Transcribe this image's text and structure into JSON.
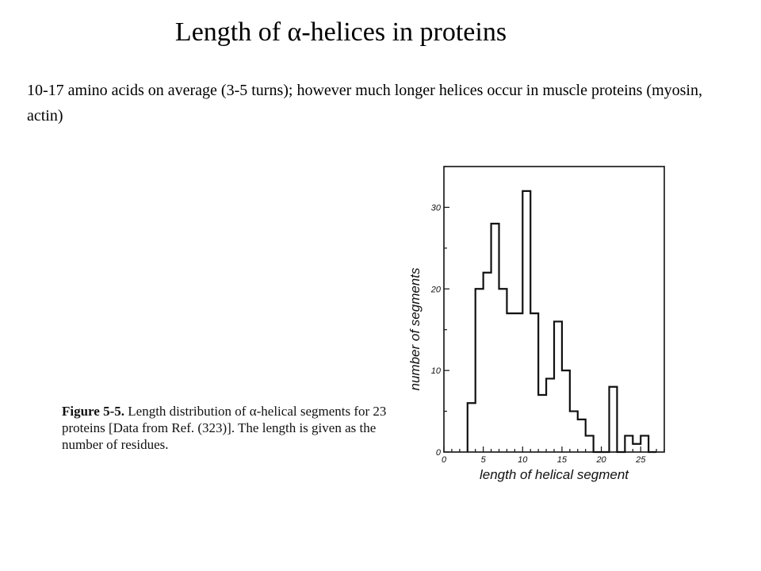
{
  "slide": {
    "title": "Length of α-helices in proteins",
    "subtitle": "10-17 amino acids on average (3-5 turns); however much longer helices occur in muscle proteins (myosin, actin)"
  },
  "figure": {
    "caption_label": "Figure 5-5.",
    "caption_text": "Length distribution of α-helical segments for 23 proteins [Data from Ref. (323)]. The length is given as the number of residues."
  },
  "chart_data": {
    "type": "bar",
    "style": "step-histogram",
    "xlabel": "length of helical segment",
    "ylabel": "number of segments",
    "xlim": [
      0,
      28
    ],
    "ylim": [
      0,
      35
    ],
    "x_ticks": [
      0,
      5,
      10,
      15,
      20,
      25
    ],
    "y_ticks": [
      0,
      10,
      20,
      30
    ],
    "bin_width": 1,
    "bin_starts": [
      3,
      4,
      5,
      6,
      7,
      8,
      9,
      10,
      11,
      12,
      13,
      14,
      15,
      16,
      17,
      18,
      19,
      20,
      21,
      22,
      23,
      24,
      25,
      26
    ],
    "values": [
      6,
      20,
      22,
      28,
      20,
      17,
      17,
      32,
      17,
      7,
      9,
      16,
      10,
      5,
      4,
      2,
      0,
      0,
      8,
      0,
      2,
      1,
      2,
      0
    ],
    "grid": false,
    "line_color": "#111111"
  }
}
